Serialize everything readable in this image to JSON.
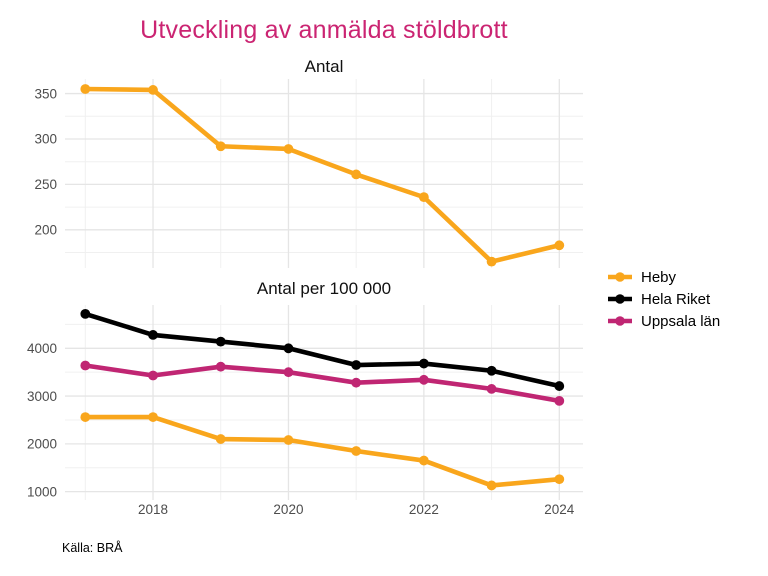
{
  "title": "Utveckling av anmälda stöldbrott",
  "caption": "Källa: BRÅ",
  "colors": {
    "title": "#cb2472",
    "heby": "#f9a61c",
    "hela_riket": "#000000",
    "uppsala_lan": "#c02673",
    "grid_major": "#e5e5e5",
    "grid_minor": "#f0f0f0",
    "tick_label": "#4d4d4d",
    "background": "#ffffff"
  },
  "legend": {
    "position": "right",
    "items": [
      {
        "label": "Heby",
        "color_key": "heby"
      },
      {
        "label": "Hela Riket",
        "color_key": "hela_riket"
      },
      {
        "label": "Uppsala län",
        "color_key": "uppsala_lan"
      }
    ]
  },
  "chart_data": [
    {
      "type": "line",
      "title": "Antal",
      "x": [
        2017,
        2018,
        2019,
        2020,
        2021,
        2022,
        2023,
        2024
      ],
      "series": [
        {
          "name": "Heby",
          "color_key": "heby",
          "values": [
            355,
            354,
            292,
            289,
            261,
            236,
            165,
            183
          ]
        }
      ],
      "xlim": [
        2016.7,
        2024.35
      ],
      "ylim": [
        158,
        366
      ],
      "y_ticks": [
        200,
        250,
        300,
        350
      ],
      "y_minor": [
        175,
        225,
        275,
        325
      ],
      "x_ticks": [
        2018,
        2020,
        2022,
        2024
      ],
      "x_minor": [
        2017,
        2019,
        2021,
        2023
      ],
      "show_x_labels": false,
      "grid": "on",
      "legend_position": "right"
    },
    {
      "type": "line",
      "title": "Antal per 100 000",
      "x": [
        2017,
        2018,
        2019,
        2020,
        2021,
        2022,
        2023,
        2024
      ],
      "series": [
        {
          "name": "Heby",
          "color_key": "heby",
          "values": [
            2560,
            2560,
            2100,
            2080,
            1850,
            1650,
            1130,
            1260
          ]
        },
        {
          "name": "Hela Riket",
          "color_key": "hela_riket",
          "values": [
            4720,
            4280,
            4140,
            4000,
            3650,
            3680,
            3530,
            3210
          ]
        },
        {
          "name": "Uppsala län",
          "color_key": "uppsala_lan",
          "values": [
            3640,
            3430,
            3615,
            3500,
            3280,
            3340,
            3150,
            2900
          ]
        }
      ],
      "xlim": [
        2016.7,
        2024.35
      ],
      "ylim": [
        825,
        4906
      ],
      "y_ticks": [
        1000,
        2000,
        3000,
        4000
      ],
      "y_minor": [
        1500,
        2500,
        3500,
        4500
      ],
      "x_ticks": [
        2018,
        2020,
        2022,
        2024
      ],
      "x_minor": [
        2017,
        2019,
        2021,
        2023
      ],
      "show_x_labels": true,
      "grid": "on",
      "legend_position": "right"
    }
  ]
}
